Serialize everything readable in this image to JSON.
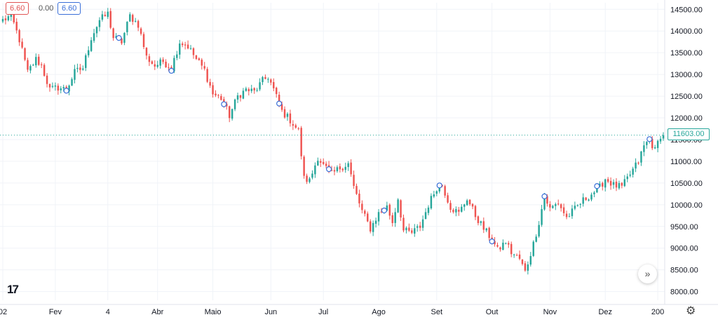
{
  "header": {
    "bid": "6.60",
    "change": "0.00",
    "ask": "6.60"
  },
  "last_price": "11603.00",
  "colors": {
    "up": "#26a69a",
    "down": "#ef5350",
    "grid": "#f0f3f8",
    "axis_text": "#131722",
    "marker": "#3a6fd8"
  },
  "icons": {
    "logo": "tradingview-logo-icon",
    "scroll": "double-chevron-right-icon",
    "settings": "gear-icon"
  },
  "logo_text": "17",
  "scroll_glyph": "»",
  "settings_glyph": "⚙",
  "chart_data": {
    "type": "candlestick",
    "title": "",
    "xlabel": "",
    "ylabel": "",
    "ylim": [
      7800,
      14650
    ],
    "y_ticks": [
      "8000.00",
      "8500.00",
      "9000.00",
      "9500.00",
      "10000.00",
      "10500.00",
      "11000.00",
      "11500.00",
      "12000.00",
      "12500.00",
      "13000.00",
      "13500.00",
      "14000.00",
      "14500.00"
    ],
    "x_ticks": [
      "02",
      "Fev",
      "4",
      "Abr",
      "Maio",
      "Jun",
      "Jul",
      "Ago",
      "Set",
      "Out",
      "Nov",
      "Dez",
      "200"
    ],
    "x_tick_index": [
      0,
      19,
      38,
      56,
      76,
      97,
      116,
      136,
      157,
      177,
      198,
      218,
      237
    ],
    "n_candles": 240,
    "anchors": [
      [
        0,
        14250
      ],
      [
        3,
        14350
      ],
      [
        6,
        13800
      ],
      [
        9,
        13050
      ],
      [
        12,
        13350
      ],
      [
        14,
        13200
      ],
      [
        17,
        12650
      ],
      [
        20,
        12700
      ],
      [
        23,
        12650
      ],
      [
        26,
        13050
      ],
      [
        29,
        13150
      ],
      [
        32,
        13850
      ],
      [
        35,
        14250
      ],
      [
        38,
        14400
      ],
      [
        40,
        13850
      ],
      [
        43,
        13750
      ],
      [
        46,
        14350
      ],
      [
        49,
        14150
      ],
      [
        52,
        13400
      ],
      [
        55,
        13200
      ],
      [
        58,
        13300
      ],
      [
        61,
        13150
      ],
      [
        64,
        13750
      ],
      [
        67,
        13650
      ],
      [
        70,
        13350
      ],
      [
        73,
        13100
      ],
      [
        76,
        12550
      ],
      [
        79,
        12450
      ],
      [
        82,
        12050
      ],
      [
        85,
        12500
      ],
      [
        88,
        12650
      ],
      [
        91,
        12600
      ],
      [
        94,
        12850
      ],
      [
        96,
        12950
      ],
      [
        98,
        12650
      ],
      [
        101,
        12150
      ],
      [
        104,
        11950
      ],
      [
        107,
        11700
      ],
      [
        109,
        10600
      ],
      [
        111,
        10550
      ],
      [
        114,
        11100
      ],
      [
        116,
        10900
      ],
      [
        119,
        10700
      ],
      [
        122,
        10850
      ],
      [
        125,
        10950
      ],
      [
        127,
        10400
      ],
      [
        130,
        9850
      ],
      [
        133,
        9450
      ],
      [
        136,
        9800
      ],
      [
        139,
        9950
      ],
      [
        141,
        9600
      ],
      [
        143,
        10150
      ],
      [
        145,
        9400
      ],
      [
        148,
        9350
      ],
      [
        151,
        9500
      ],
      [
        154,
        10000
      ],
      [
        157,
        10400
      ],
      [
        159,
        10450
      ],
      [
        162,
        9950
      ],
      [
        165,
        9800
      ],
      [
        168,
        10150
      ],
      [
        171,
        9750
      ],
      [
        174,
        9450
      ],
      [
        177,
        9200
      ],
      [
        179,
        8950
      ],
      [
        182,
        9150
      ],
      [
        184,
        8900
      ],
      [
        187,
        8750
      ],
      [
        189,
        8450
      ],
      [
        192,
        9100
      ],
      [
        194,
        9600
      ],
      [
        196,
        10200
      ],
      [
        198,
        9900
      ],
      [
        201,
        10050
      ],
      [
        204,
        9700
      ],
      [
        207,
        9900
      ],
      [
        210,
        10100
      ],
      [
        213,
        10250
      ],
      [
        216,
        10400
      ],
      [
        218,
        10600
      ],
      [
        221,
        10450
      ],
      [
        224,
        10400
      ],
      [
        227,
        10700
      ],
      [
        230,
        11000
      ],
      [
        232,
        11350
      ],
      [
        234,
        11500
      ],
      [
        236,
        11250
      ],
      [
        238,
        11603
      ]
    ],
    "markers": [
      3,
      23,
      42,
      61,
      80,
      100,
      118,
      138,
      158,
      177,
      196,
      215,
      234
    ]
  }
}
